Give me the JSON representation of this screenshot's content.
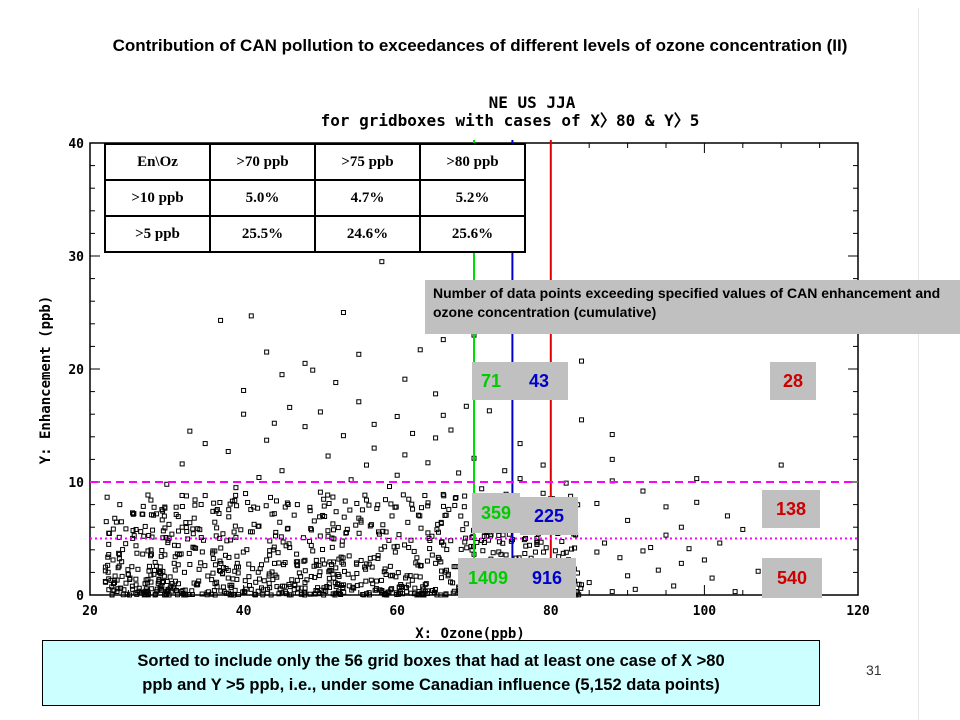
{
  "slide": {
    "title": "Contribution of CAN pollution to exceedances of different levels of ozone concentration (II)",
    "note": "Number of data points exceeding specified values of CAN enhancement and ozone concentration (cumulative)",
    "summary_line1": "Sorted to include only the 56 grid boxes that had at least one case of X >80",
    "summary_line2": "ppb and Y >5 ppb, i.e., under some Canadian influence (5,152 data points)",
    "page_number": "31"
  },
  "table": {
    "header": [
      "En\\Oz",
      ">70 ppb",
      ">75 ppb",
      ">80 ppb"
    ],
    "rows": [
      [
        ">10 ppb",
        "5.0%",
        "4.7%",
        "5.2%"
      ],
      [
        ">5 ppb",
        "25.5%",
        "24.6%",
        "25.6%"
      ]
    ]
  },
  "counts": {
    "y20_x70": "71",
    "y20_x75": "43",
    "y20_x80": "28",
    "y10_x70": "359",
    "y10_x75": "225",
    "y10_x80": "138",
    "y0_x70": "1409",
    "y0_x75": "916",
    "y0_x80": "540"
  },
  "colors": {
    "x70_line": "#00dd00",
    "x75_line": "#0000cc",
    "x80_line": "#dd0000",
    "y10_line": "#ff00ff",
    "y5_line": "#ff00ff",
    "count_green": "#00cc00",
    "count_blue": "#0000cc",
    "count_red": "#cc0000",
    "summary_bg": "#ccffff",
    "note_bg": "#c0c0c0"
  },
  "chart_data": {
    "type": "scatter",
    "title": "NE US JJA",
    "subtitle": "for gridboxes with cases of X〉80 & Y〉5",
    "xlabel": "X: Ozone(ppb)",
    "ylabel": "Y: Enhancement (ppb)",
    "xlim": [
      20,
      120
    ],
    "ylim": [
      0,
      40
    ],
    "xticks": [
      "20",
      "40",
      "60",
      "80",
      "100",
      "120"
    ],
    "yticks": [
      "0",
      "10",
      "20",
      "30",
      "40"
    ],
    "vertical_lines": [
      70,
      75,
      80
    ],
    "horizontal_lines": [
      10,
      5
    ],
    "marker": "open square",
    "points": [
      [
        58,
        29.5
      ],
      [
        63,
        21.7
      ],
      [
        37,
        24.3
      ],
      [
        41,
        24.7
      ],
      [
        43,
        21.5
      ],
      [
        45,
        19.5
      ],
      [
        49,
        19.9
      ],
      [
        52,
        18.8
      ],
      [
        70,
        23.0
      ],
      [
        99,
        10.3
      ],
      [
        110,
        11.5
      ],
      [
        99,
        8.2
      ],
      [
        95,
        7.8
      ],
      [
        105,
        5.8
      ],
      [
        102,
        4.6
      ],
      [
        88,
        12.0
      ],
      [
        88,
        14.2
      ],
      [
        84,
        15.5
      ],
      [
        78,
        18.0
      ],
      [
        84,
        20.7
      ],
      [
        27,
        5.2
      ],
      [
        23,
        3.1
      ],
      [
        25,
        1.8
      ],
      [
        29,
        2.0
      ],
      [
        33,
        6.4
      ],
      [
        35,
        8.8
      ],
      [
        38,
        12.7
      ],
      [
        40,
        16.0
      ],
      [
        46,
        16.6
      ],
      [
        55,
        17.1
      ],
      [
        60,
        15.8
      ],
      [
        65,
        17.8
      ],
      [
        67,
        14.6
      ],
      [
        72,
        16.3
      ],
      [
        76,
        13.4
      ],
      [
        79,
        11.5
      ],
      [
        82,
        9.9
      ],
      [
        86,
        8.1
      ],
      [
        90,
        6.6
      ],
      [
        93,
        4.2
      ],
      [
        97,
        2.8
      ],
      [
        101,
        1.5
      ],
      [
        96,
        0.8
      ],
      [
        91,
        0.5
      ],
      [
        85,
        1.1
      ],
      [
        81,
        2.6
      ],
      [
        112,
        0.4
      ],
      [
        104,
        0.3
      ],
      [
        30,
        9.8
      ],
      [
        32,
        11.6
      ],
      [
        43,
        13.7
      ],
      [
        48,
        14.9
      ],
      [
        53,
        14.1
      ],
      [
        57,
        13.0
      ],
      [
        61,
        12.4
      ],
      [
        64,
        11.7
      ],
      [
        68,
        10.8
      ],
      [
        71,
        9.4
      ],
      [
        74,
        8.6
      ],
      [
        77,
        7.9
      ],
      [
        80,
        6.9
      ],
      [
        83,
        5.4
      ],
      [
        87,
        4.6
      ],
      [
        89,
        3.3
      ],
      [
        24,
        0.6
      ],
      [
        26,
        0.9
      ],
      [
        28,
        3.6
      ],
      [
        31,
        4.4
      ],
      [
        36,
        3.9
      ],
      [
        39,
        5.1
      ],
      [
        42,
        6.1
      ],
      [
        44,
        7.2
      ],
      [
        47,
        8.0
      ],
      [
        50,
        9.1
      ],
      [
        54,
        10.2
      ],
      [
        56,
        8.4
      ],
      [
        59,
        9.6
      ],
      [
        62,
        7.6
      ],
      [
        66,
        8.9
      ],
      [
        69,
        6.3
      ],
      [
        73,
        5.7
      ],
      [
        75,
        4.9
      ],
      [
        78,
        3.8
      ],
      [
        82,
        2.9
      ],
      [
        84,
        0.9
      ],
      [
        77,
        1.2
      ],
      [
        72,
        2.2
      ],
      [
        68,
        0.7
      ],
      [
        63,
        1.6
      ],
      [
        58,
        0.4
      ],
      [
        52,
        2.4
      ],
      [
        47,
        1.3
      ],
      [
        41,
        0.5
      ],
      [
        37,
        2.1
      ],
      [
        34,
        1.0
      ],
      [
        30,
        0.3
      ],
      [
        45,
        11.0
      ],
      [
        51,
        12.3
      ],
      [
        56,
        11.5
      ],
      [
        60,
        10.6
      ],
      [
        65,
        13.9
      ],
      [
        70,
        12.1
      ],
      [
        74,
        11.0
      ],
      [
        39,
        9.5
      ],
      [
        42,
        10.4
      ],
      [
        36,
        7.4
      ],
      [
        32,
        6.0
      ],
      [
        28,
        7.1
      ],
      [
        26,
        5.8
      ],
      [
        22,
        1.2
      ],
      [
        35,
        13.4
      ],
      [
        44,
        15.2
      ],
      [
        50,
        16.2
      ],
      [
        57,
        15.1
      ],
      [
        62,
        14.3
      ],
      [
        66,
        15.9
      ],
      [
        69,
        16.7
      ],
      [
        73,
        18.6
      ],
      [
        48,
        20.5
      ],
      [
        55,
        21.3
      ],
      [
        61,
        19.1
      ],
      [
        53,
        25.0
      ],
      [
        66,
        22.6
      ],
      [
        40,
        18.1
      ],
      [
        33,
        14.5
      ],
      [
        88,
        10.1
      ],
      [
        92,
        9.2
      ],
      [
        95,
        5.3
      ],
      [
        98,
        4.1
      ],
      [
        107,
        2.1
      ],
      [
        109,
        1.4
      ],
      [
        100,
        3.1
      ],
      [
        94,
        2.2
      ],
      [
        90,
        1.7
      ],
      [
        86,
        3.8
      ],
      [
        83,
        7.3
      ],
      [
        79,
        9.0
      ],
      [
        76,
        10.3
      ],
      [
        64,
        5.5
      ],
      [
        60,
        4.3
      ],
      [
        55,
        6.8
      ],
      [
        51,
        5.2
      ],
      [
        46,
        4.2
      ],
      [
        43,
        3.1
      ],
      [
        38,
        1.5
      ],
      [
        33,
        2.7
      ],
      [
        29,
        1.4
      ],
      [
        27,
        0.2
      ],
      [
        65,
        2.8
      ],
      [
        70,
        3.6
      ],
      [
        74,
        0.4
      ],
      [
        80,
        0.2
      ],
      [
        88,
        0.3
      ],
      [
        92,
        3.9
      ],
      [
        97,
        6.0
      ],
      [
        103,
        7.0
      ],
      [
        57,
        3.3
      ],
      [
        53,
        0.9
      ],
      [
        49,
        3.9
      ],
      [
        45,
        0.2
      ]
    ]
  }
}
